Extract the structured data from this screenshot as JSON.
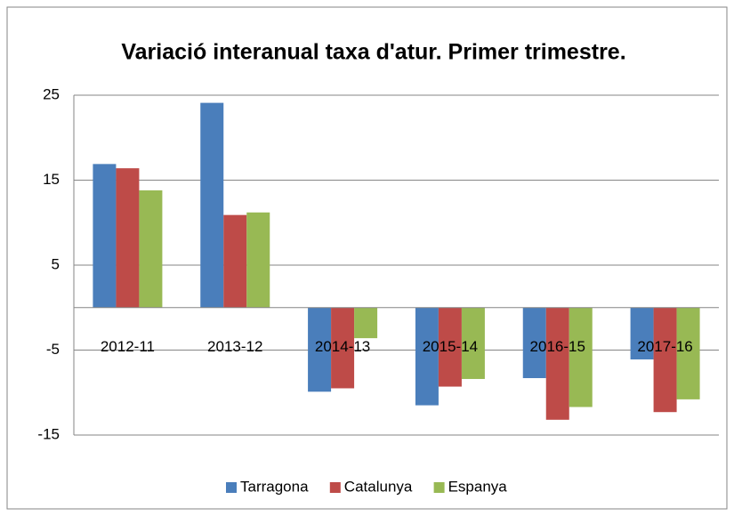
{
  "chart_data": {
    "type": "bar",
    "title": "Variació interanual taxa d'atur. Primer trimestre.",
    "categories": [
      "2012-11",
      "2013-12",
      "2014-13",
      "2015-14",
      "2016-15",
      "2017-16"
    ],
    "series": [
      {
        "name": "Tarragona",
        "color": "#4a7ebb",
        "values": [
          16.9,
          24.1,
          -9.9,
          -11.5,
          -8.3,
          -6.1
        ]
      },
      {
        "name": "Catalunya",
        "color": "#be4b48",
        "values": [
          16.4,
          10.9,
          -9.5,
          -9.3,
          -13.2,
          -12.3
        ]
      },
      {
        "name": "Espanya",
        "color": "#98b954",
        "values": [
          13.8,
          11.2,
          -3.6,
          -8.4,
          -11.7,
          -10.8
        ]
      }
    ],
    "ylim": [
      -15,
      25
    ],
    "yticks": [
      -15,
      -5,
      5,
      15,
      25
    ],
    "grid": true,
    "legend": "bottom"
  }
}
